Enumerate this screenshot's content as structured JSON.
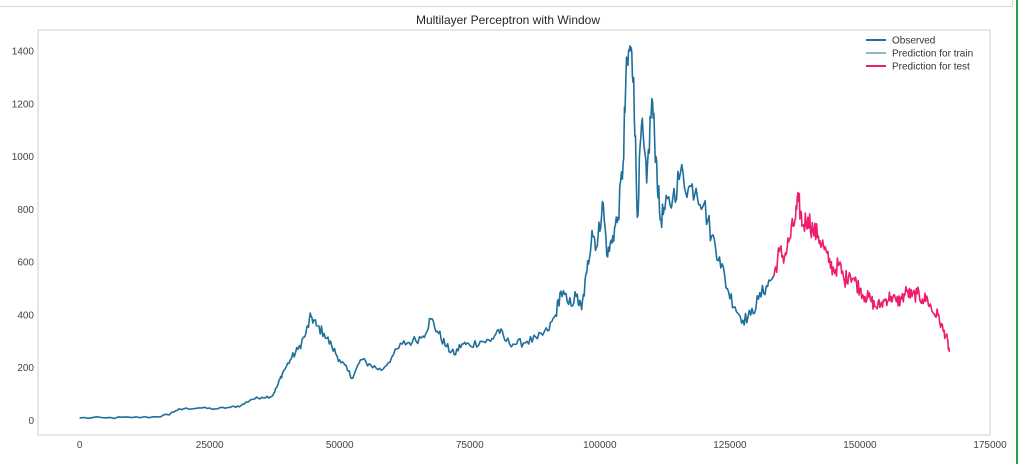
{
  "chart_data": {
    "type": "line",
    "title": "Multilayer Perceptron with Window",
    "xlabel": "",
    "ylabel": "",
    "xlim": [
      -8000,
      175000
    ],
    "ylim": [
      -55,
      1480
    ],
    "x_ticks": [
      0,
      25000,
      50000,
      75000,
      100000,
      125000,
      150000,
      175000
    ],
    "x_tick_labels": [
      "0",
      "25000",
      "50000",
      "75000",
      "100000",
      "125000",
      "150000",
      "175000"
    ],
    "y_ticks": [
      0,
      200,
      400,
      600,
      800,
      1000,
      1200,
      1400
    ],
    "y_tick_labels": [
      "0",
      "200",
      "400",
      "600",
      "800",
      "1000",
      "1200",
      "1400"
    ],
    "grid": true,
    "legend_position": "top-right",
    "series": [
      {
        "name": "Observed",
        "color": "#1f6f9b",
        "points": [
          [
            0,
            10
          ],
          [
            5000,
            10
          ],
          [
            10000,
            11
          ],
          [
            15000,
            14
          ],
          [
            17000,
            22
          ],
          [
            18500,
            38
          ],
          [
            20000,
            44
          ],
          [
            23000,
            48
          ],
          [
            26000,
            44
          ],
          [
            29000,
            50
          ],
          [
            31000,
            56
          ],
          [
            33000,
            80
          ],
          [
            35000,
            88
          ],
          [
            37000,
            92
          ],
          [
            38000,
            130
          ],
          [
            39000,
            180
          ],
          [
            40500,
            230
          ],
          [
            42000,
            270
          ],
          [
            43500,
            330
          ],
          [
            44500,
            395
          ],
          [
            45500,
            360
          ],
          [
            47000,
            330
          ],
          [
            48500,
            280
          ],
          [
            50000,
            230
          ],
          [
            51500,
            190
          ],
          [
            52500,
            160
          ],
          [
            54000,
            230
          ],
          [
            56000,
            210
          ],
          [
            58000,
            190
          ],
          [
            60000,
            240
          ],
          [
            62000,
            290
          ],
          [
            64000,
            300
          ],
          [
            66000,
            320
          ],
          [
            67500,
            385
          ],
          [
            69000,
            330
          ],
          [
            70500,
            280
          ],
          [
            72000,
            250
          ],
          [
            73500,
            290
          ],
          [
            75000,
            285
          ],
          [
            77000,
            300
          ],
          [
            79000,
            300
          ],
          [
            80500,
            345
          ],
          [
            82000,
            300
          ],
          [
            84000,
            290
          ],
          [
            86000,
            300
          ],
          [
            88000,
            310
          ],
          [
            90000,
            340
          ],
          [
            91500,
            400
          ],
          [
            92500,
            490
          ],
          [
            94000,
            440
          ],
          [
            95500,
            470
          ],
          [
            96500,
            420
          ],
          [
            97500,
            560
          ],
          [
            98500,
            720
          ],
          [
            99500,
            660
          ],
          [
            100500,
            830
          ],
          [
            101500,
            620
          ],
          [
            102500,
            700
          ],
          [
            103500,
            770
          ],
          [
            104500,
            980
          ],
          [
            105000,
            1280
          ],
          [
            105800,
            1420
          ],
          [
            106500,
            1300
          ],
          [
            107200,
            770
          ],
          [
            108000,
            1120
          ],
          [
            109000,
            900
          ],
          [
            110000,
            1220
          ],
          [
            110800,
            1000
          ],
          [
            111600,
            760
          ],
          [
            112500,
            800
          ],
          [
            114000,
            840
          ],
          [
            115500,
            940
          ],
          [
            117000,
            880
          ],
          [
            118500,
            880
          ],
          [
            120000,
            820
          ],
          [
            121500,
            700
          ],
          [
            123000,
            620
          ],
          [
            124500,
            500
          ],
          [
            126000,
            430
          ],
          [
            127500,
            380
          ],
          [
            129000,
            400
          ],
          [
            130500,
            460
          ],
          [
            132000,
            510
          ],
          [
            133500,
            550
          ]
        ]
      },
      {
        "name": "Prediction for train",
        "color": "#8ab8cc",
        "points": []
      },
      {
        "name": "Prediction for test",
        "color": "#ee1d6e",
        "points": [
          [
            133500,
            550
          ],
          [
            134500,
            640
          ],
          [
            135500,
            620
          ],
          [
            136500,
            690
          ],
          [
            137500,
            760
          ],
          [
            138200,
            830
          ],
          [
            139000,
            740
          ],
          [
            140000,
            770
          ],
          [
            141000,
            720
          ],
          [
            142000,
            700
          ],
          [
            143000,
            660
          ],
          [
            144000,
            600
          ],
          [
            145000,
            570
          ],
          [
            146000,
            590
          ],
          [
            147000,
            530
          ],
          [
            148000,
            560
          ],
          [
            149000,
            530
          ],
          [
            150000,
            500
          ],
          [
            151000,
            470
          ],
          [
            152000,
            460
          ],
          [
            153000,
            430
          ],
          [
            154000,
            440
          ],
          [
            155000,
            460
          ],
          [
            156000,
            470
          ],
          [
            157000,
            450
          ],
          [
            158000,
            460
          ],
          [
            159000,
            490
          ],
          [
            160000,
            470
          ],
          [
            161000,
            480
          ],
          [
            162000,
            460
          ],
          [
            163000,
            460
          ],
          [
            164000,
            410
          ],
          [
            165000,
            400
          ],
          [
            166000,
            340
          ],
          [
            166600,
            320
          ],
          [
            167200,
            260
          ]
        ]
      }
    ]
  }
}
